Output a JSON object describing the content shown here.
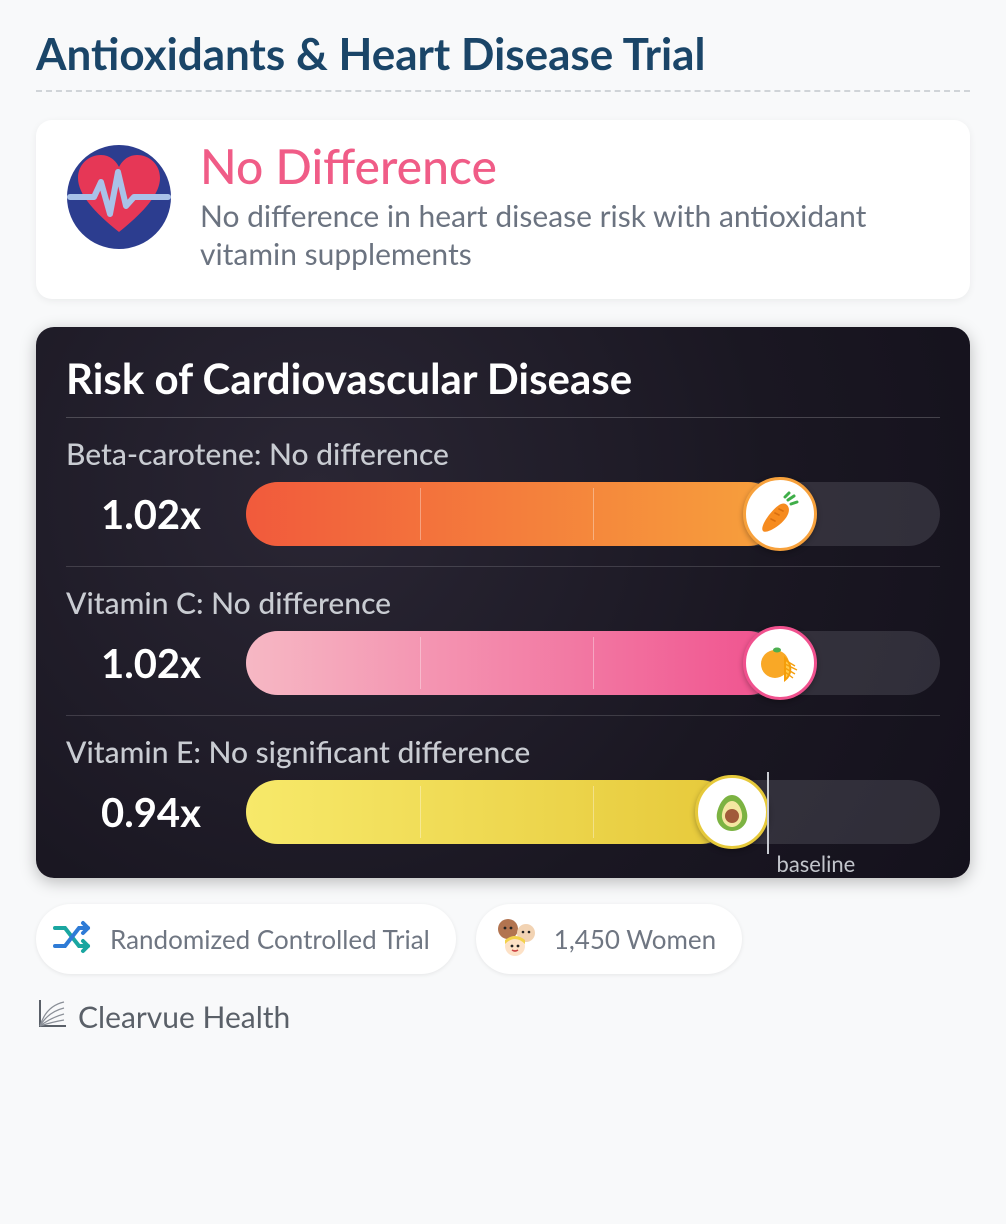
{
  "page": {
    "title": "Antioxidants & Heart Disease Trial",
    "title_color": "#1a4568",
    "background": "#f8f9fa"
  },
  "summary": {
    "headline": "No Difference",
    "headline_color": "#f05c87",
    "subtext": "No difference in heart disease risk with antioxidant vitamin supplements",
    "subtext_color": "#6b7380",
    "icon": {
      "name": "heart-ecg-icon",
      "circle_fill": "#2c3d8f",
      "heart_fill": "#e63756",
      "line_color": "#a9c2e8"
    }
  },
  "chart": {
    "title": "Risk of Cardiovascular Disease",
    "title_color": "#ffffff",
    "card_bg_inner": "#2a2634",
    "card_bg_outer": "#14111c",
    "track_color": "rgba(120,120,130,0.28)",
    "tick_positions_pct": [
      25,
      50,
      75
    ],
    "baseline_pct": 75,
    "baseline_label": "baseline",
    "label_color": "#c9ccd2",
    "value_color": "#ffffff",
    "rows": [
      {
        "label": "Beta-carotene: No difference",
        "value_text": "1.02x",
        "value": 1.02,
        "fill_pct": 77,
        "gradient_start": "#f15a3c",
        "gradient_end": "#f7a13c",
        "badge_border": "#f7a13c",
        "icon": "carrot"
      },
      {
        "label": "Vitamin C: No difference",
        "value_text": "1.02x",
        "value": 1.02,
        "fill_pct": 77,
        "gradient_start": "#f6b8c4",
        "gradient_end": "#f0518e",
        "badge_border": "#f0518e",
        "icon": "orange"
      },
      {
        "label": "Vitamin E: No significant difference",
        "value_text": "0.94x",
        "value": 0.94,
        "fill_pct": 70,
        "gradient_start": "#f7e96a",
        "gradient_end": "#e6c93a",
        "badge_border": "#e6c93a",
        "icon": "avocado"
      }
    ]
  },
  "meta": {
    "trial_type": "Randomized Controlled Trial",
    "population": "1,450 Women",
    "shuffle_icon_colors": {
      "a": "#1aa6a0",
      "b": "#2e7bd6"
    }
  },
  "brand": {
    "name": "Clearvue Health"
  }
}
